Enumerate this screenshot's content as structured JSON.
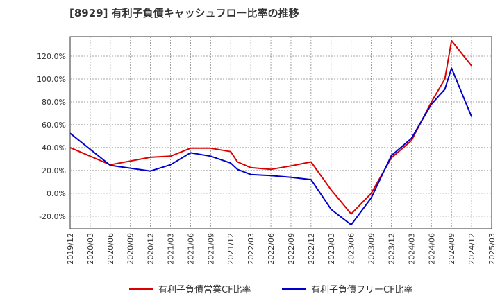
{
  "chart_data": {
    "type": "line",
    "title": "[8929]  有利子負債キャッシュフロー比率の推移",
    "xlabel": "",
    "ylabel": "",
    "x": [
      "2019/12",
      "2020/03",
      "2020/06",
      "2020/09",
      "2020/12",
      "2021/03",
      "2021/06",
      "2021/09",
      "2021/12",
      "2022/03",
      "2022/06",
      "2022/09",
      "2022/12",
      "2023/03",
      "2023/06",
      "2023/09",
      "2023/12",
      "2024/03",
      "2024/06",
      "2024/09",
      "2024/12",
      "2025/03"
    ],
    "ylim": [
      -31,
      137
    ],
    "yticks": [
      -20,
      0,
      20,
      40,
      60,
      80,
      100,
      120
    ],
    "ytick_labels": [
      "-20.0%",
      "0.0%",
      "20.0%",
      "40.0%",
      "60.0%",
      "80.0%",
      "100.0%",
      "120.0%"
    ],
    "grid": true,
    "legend_position": "bottom",
    "series": [
      {
        "name": "有利子負債営業CF比率",
        "color": "#dd0000",
        "points": [
          [
            "2019/12",
            40
          ],
          [
            "2020/06",
            25
          ],
          [
            "2020/12",
            31.5
          ],
          [
            "2021/03",
            32.5
          ],
          [
            "2021/06",
            39.5
          ],
          [
            "2021/09",
            39.5
          ],
          [
            "2021/12",
            36.5
          ],
          [
            "2022/01",
            27.5
          ],
          [
            "2022/03",
            22.5
          ],
          [
            "2022/06",
            21
          ],
          [
            "2022/09",
            24
          ],
          [
            "2022/12",
            27.5
          ],
          [
            "2023/03",
            3
          ],
          [
            "2023/06",
            -18
          ],
          [
            "2023/09",
            0
          ],
          [
            "2023/12",
            31
          ],
          [
            "2024/03",
            46
          ],
          [
            "2024/06",
            80
          ],
          [
            "2024/08",
            100
          ],
          [
            "2024/09",
            133.5
          ],
          [
            "2024/12",
            111.5
          ]
        ]
      },
      {
        "name": "有利子負債フリーCF比率",
        "color": "#0000cc",
        "points": [
          [
            "2019/12",
            52.5
          ],
          [
            "2020/06",
            24.5
          ],
          [
            "2020/12",
            19.5
          ],
          [
            "2021/03",
            25
          ],
          [
            "2021/06",
            35.5
          ],
          [
            "2021/09",
            32.5
          ],
          [
            "2021/12",
            26.5
          ],
          [
            "2022/01",
            21
          ],
          [
            "2022/03",
            16.5
          ],
          [
            "2022/06",
            15.5
          ],
          [
            "2022/09",
            14
          ],
          [
            "2022/12",
            12
          ],
          [
            "2023/03",
            -14
          ],
          [
            "2023/06",
            -27.5
          ],
          [
            "2023/09",
            -4
          ],
          [
            "2023/12",
            33
          ],
          [
            "2024/03",
            48
          ],
          [
            "2024/06",
            78
          ],
          [
            "2024/08",
            91
          ],
          [
            "2024/09",
            109.5
          ],
          [
            "2024/12",
            67
          ]
        ]
      }
    ]
  }
}
